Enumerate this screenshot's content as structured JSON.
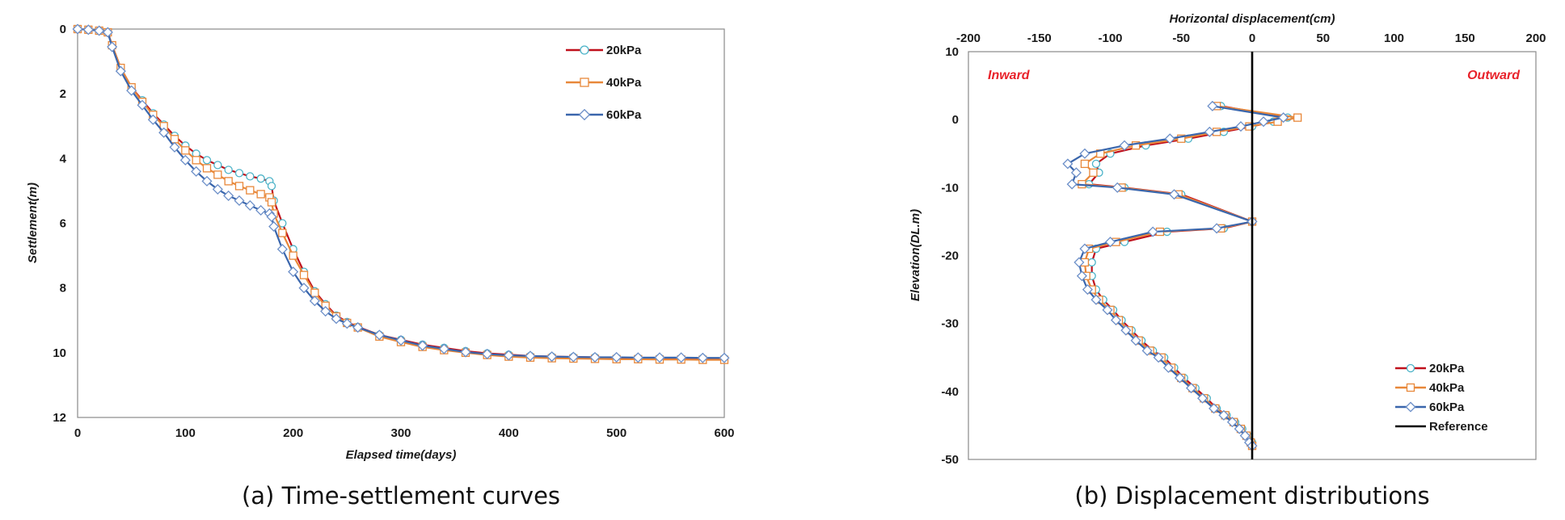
{
  "colors": {
    "line_20kPa": "#c0101c",
    "marker_20kPa": "#4bb3c8",
    "line_40kPa": "#e8883a",
    "marker_40kPa": "#e8883a",
    "line_60kPa": "#3a66ac",
    "marker_60kPa": "#6c8fc8",
    "reference": "#000000",
    "annotation": "#e8222a"
  },
  "chart_data": [
    {
      "type": "line",
      "caption": "(a) Time-settlement curves",
      "xlabel": "Elapsed time(days)",
      "ylabel": "Settlement(m)",
      "xlim": [
        0,
        600
      ],
      "ylim": [
        0,
        12
      ],
      "y_inverted": true,
      "xticks": [
        0,
        100,
        200,
        300,
        400,
        500,
        600
      ],
      "yticks": [
        0,
        2,
        4,
        6,
        8,
        10,
        12
      ],
      "grid": false,
      "legend_position": "top-right",
      "series": [
        {
          "name": "20kPa",
          "marker": "circle",
          "x": [
            0,
            10,
            20,
            28,
            32,
            40,
            50,
            60,
            70,
            80,
            90,
            100,
            110,
            120,
            130,
            140,
            150,
            160,
            170,
            178,
            180,
            182,
            190,
            200,
            210,
            220,
            230,
            240,
            250,
            260,
            280,
            300,
            320,
            340,
            360,
            380,
            400,
            420,
            440,
            460,
            480,
            500,
            520,
            540,
            560,
            580,
            600
          ],
          "y": [
            0,
            0.02,
            0.05,
            0.1,
            0.5,
            1.2,
            1.8,
            2.2,
            2.6,
            2.95,
            3.3,
            3.6,
            3.85,
            4.05,
            4.2,
            4.35,
            4.45,
            4.55,
            4.62,
            4.7,
            4.85,
            5.3,
            6.0,
            6.8,
            7.5,
            8.1,
            8.5,
            8.85,
            9.05,
            9.2,
            9.45,
            9.6,
            9.75,
            9.85,
            9.95,
            10.02,
            10.06,
            10.1,
            10.12,
            10.13,
            10.14,
            10.15,
            10.16,
            10.16,
            10.17,
            10.17,
            10.17
          ]
        },
        {
          "name": "40kPa",
          "marker": "square",
          "x": [
            0,
            10,
            20,
            28,
            32,
            40,
            50,
            60,
            70,
            80,
            90,
            100,
            110,
            120,
            130,
            140,
            150,
            160,
            170,
            178,
            180,
            182,
            190,
            200,
            210,
            220,
            230,
            240,
            250,
            260,
            280,
            300,
            320,
            340,
            360,
            380,
            400,
            420,
            440,
            460,
            480,
            500,
            520,
            540,
            560,
            580,
            600
          ],
          "y": [
            0,
            0.02,
            0.05,
            0.1,
            0.5,
            1.2,
            1.8,
            2.25,
            2.65,
            3.0,
            3.4,
            3.75,
            4.05,
            4.3,
            4.5,
            4.7,
            4.85,
            4.98,
            5.1,
            5.2,
            5.35,
            5.7,
            6.3,
            7.0,
            7.6,
            8.15,
            8.55,
            8.88,
            9.08,
            9.22,
            9.5,
            9.67,
            9.82,
            9.92,
            10.0,
            10.07,
            10.12,
            10.15,
            10.17,
            10.18,
            10.19,
            10.2,
            10.2,
            10.21,
            10.21,
            10.22,
            10.22
          ]
        },
        {
          "name": "60kPa",
          "marker": "diamond",
          "x": [
            0,
            10,
            20,
            28,
            32,
            40,
            50,
            60,
            70,
            80,
            90,
            100,
            110,
            120,
            130,
            140,
            150,
            160,
            170,
            178,
            180,
            182,
            190,
            200,
            210,
            220,
            230,
            240,
            250,
            260,
            280,
            300,
            320,
            340,
            360,
            380,
            400,
            420,
            440,
            460,
            480,
            500,
            520,
            540,
            560,
            580,
            600
          ],
          "y": [
            0,
            0.02,
            0.05,
            0.1,
            0.55,
            1.3,
            1.9,
            2.35,
            2.8,
            3.2,
            3.65,
            4.05,
            4.4,
            4.7,
            4.95,
            5.15,
            5.3,
            5.45,
            5.6,
            5.7,
            5.8,
            6.1,
            6.8,
            7.5,
            8.0,
            8.4,
            8.72,
            8.95,
            9.1,
            9.22,
            9.45,
            9.62,
            9.78,
            9.88,
            9.98,
            10.04,
            10.08,
            10.1,
            10.12,
            10.13,
            10.14,
            10.14,
            10.15,
            10.15,
            10.15,
            10.16,
            10.16
          ]
        }
      ]
    },
    {
      "type": "line",
      "caption": "(b) Displacement distributions",
      "xlabel": "Horizontal displacement(cm)",
      "ylabel": "Elevation(DL.m)",
      "xlim": [
        -200,
        200
      ],
      "ylim": [
        -50,
        10
      ],
      "xaxis_position": "top",
      "xticks": [
        -200,
        -150,
        -100,
        -50,
        0,
        50,
        100,
        150,
        200
      ],
      "yticks": [
        10,
        0,
        -10,
        -20,
        -30,
        -40,
        -50
      ],
      "grid": false,
      "legend_position": "bottom-right",
      "annotations": [
        "Inward",
        "Outward"
      ],
      "series": [
        {
          "name": "20kPa",
          "marker": "circle",
          "x": [
            -22,
            25,
            15,
            0,
            -20,
            -45,
            -75,
            -100,
            -110,
            -108,
            -115,
            -90,
            -50,
            0,
            -20,
            -60,
            -90,
            -110,
            -113,
            -113,
            -110,
            -105,
            -98,
            -92,
            -85,
            -78,
            -70,
            -62,
            -55,
            -48,
            -40,
            -32,
            -25,
            -18,
            -12,
            -7,
            -3,
            0,
            0
          ],
          "y": [
            2,
            0.3,
            -0.3,
            -1,
            -1.8,
            -2.8,
            -3.8,
            -5,
            -6.5,
            -7.8,
            -9.5,
            -10,
            -11,
            -15,
            -16,
            -16.5,
            -18,
            -19,
            -21,
            -23,
            -25,
            -26.5,
            -28,
            -29.5,
            -31,
            -32.5,
            -34,
            -35,
            -36.5,
            -38,
            -39.5,
            -41,
            -42.5,
            -43.5,
            -44.5,
            -45.5,
            -46.5,
            -47.5,
            -48
          ]
        },
        {
          "name": "40kPa",
          "marker": "square",
          "x": [
            -25,
            32,
            18,
            -2,
            -25,
            -50,
            -82,
            -107,
            -118,
            -112,
            -120,
            -92,
            -52,
            0,
            -22,
            -65,
            -96,
            -115,
            -118,
            -117,
            -113,
            -108,
            -100,
            -94,
            -87,
            -80,
            -72,
            -64,
            -57,
            -50,
            -42,
            -34,
            -26,
            -19,
            -13,
            -8,
            -4,
            -1,
            0
          ],
          "y": [
            2,
            0.3,
            -0.3,
            -1,
            -1.8,
            -2.8,
            -3.8,
            -5,
            -6.5,
            -7.8,
            -9.5,
            -10,
            -11,
            -15,
            -16,
            -16.5,
            -18,
            -19,
            -21,
            -23,
            -25,
            -26.5,
            -28,
            -29.5,
            -31,
            -32.5,
            -34,
            -35,
            -36.5,
            -38,
            -39.5,
            -41,
            -42.5,
            -43.5,
            -44.5,
            -45.5,
            -46.5,
            -47.5,
            -48
          ]
        },
        {
          "name": "60kPa",
          "marker": "diamond",
          "x": [
            -28,
            22,
            8,
            -8,
            -30,
            -58,
            -90,
            -118,
            -130,
            -124,
            -127,
            -95,
            -55,
            0,
            -25,
            -70,
            -100,
            -118,
            -122,
            -120,
            -116,
            -110,
            -102,
            -96,
            -89,
            -82,
            -74,
            -66,
            -59,
            -51,
            -43,
            -35,
            -27,
            -20,
            -14,
            -9,
            -5,
            -2,
            0
          ],
          "y": [
            2,
            0.3,
            -0.3,
            -1,
            -1.8,
            -2.8,
            -3.8,
            -5,
            -6.5,
            -7.8,
            -9.5,
            -10,
            -11,
            -15,
            -16,
            -16.5,
            -18,
            -19,
            -21,
            -23,
            -25,
            -26.5,
            -28,
            -29.5,
            -31,
            -32.5,
            -34,
            -35,
            -36.5,
            -38,
            -39.5,
            -41,
            -42.5,
            -43.5,
            -44.5,
            -45.5,
            -46.5,
            -47.5,
            -48
          ]
        },
        {
          "name": "Reference",
          "marker": "none",
          "x": [
            0,
            0
          ],
          "y": [
            10,
            -50
          ]
        }
      ]
    }
  ]
}
